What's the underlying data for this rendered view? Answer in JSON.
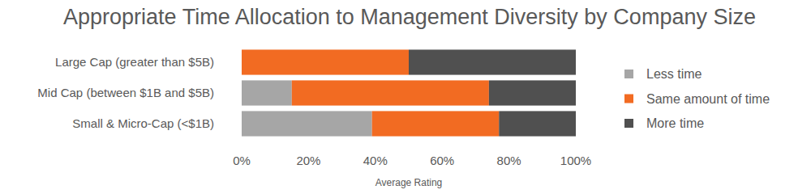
{
  "chart_data": {
    "type": "bar",
    "orientation": "horizontal",
    "stacked": true,
    "title": "Appropriate Time Allocation to Management Diversity by Company Size",
    "x_label": "Average Rating",
    "categories": [
      "Large Cap (greater than $5B)",
      "Mid Cap (between $1B and $5B)",
      "Small & Micro-Cap (<$1B)"
    ],
    "series": [
      {
        "name": "Less time",
        "color": "#a6a6a6",
        "values": [
          0,
          15,
          39
        ]
      },
      {
        "name": "Same amount of time",
        "color": "#f26b22",
        "values": [
          50,
          59,
          38
        ]
      },
      {
        "name": "More time",
        "color": "#505050",
        "values": [
          50,
          26,
          23
        ]
      }
    ],
    "xlim": [
      0,
      100
    ],
    "xticks": [
      {
        "value": 0,
        "label": "0%"
      },
      {
        "value": 20,
        "label": "20%"
      },
      {
        "value": 40,
        "label": "40%"
      },
      {
        "value": 60,
        "label": "60%"
      },
      {
        "value": 80,
        "label": "80%"
      },
      {
        "value": 100,
        "label": "100%"
      }
    ],
    "grid": false,
    "legend": "right"
  }
}
